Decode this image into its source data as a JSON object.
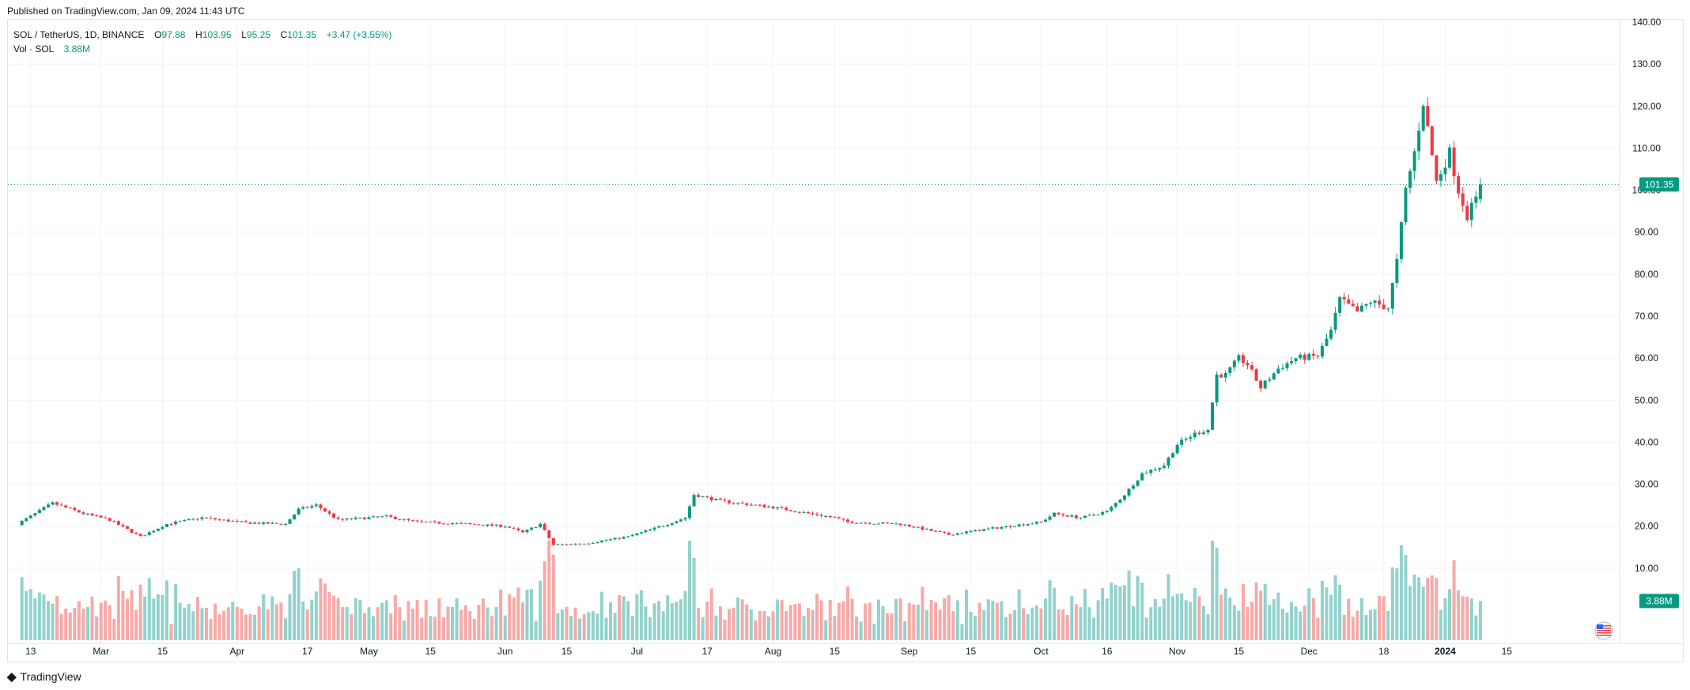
{
  "header": {
    "published": "Published on TradingView.com, Jan 09, 2024 11:43 UTC"
  },
  "legend": {
    "symbol": "SOL / TetherUS, 1D, BINANCE",
    "open_label": "O",
    "open": "97.88",
    "high_label": "H",
    "high": "103.95",
    "low_label": "L",
    "low": "95.25",
    "close_label": "C",
    "close": "101.35",
    "change": "+3.47 (+3.55%)",
    "volume_label": "Vol · SOL",
    "volume": "3.88M"
  },
  "footer": {
    "brand": "TradingView"
  },
  "colors": {
    "up": "#089981",
    "down": "#f23645",
    "up_volume": "#92d2cc",
    "down_volume": "#f7a9a7",
    "grid": "#f0f3fa",
    "last_price": "#089981"
  },
  "chart_data": {
    "type": "candlestick",
    "title": "SOL / TetherUS, 1D, BINANCE",
    "interval": "1D",
    "x_ticks": [
      "13",
      "Mar",
      "15",
      "Apr",
      "17",
      "May",
      "15",
      "Jun",
      "15",
      "Jul",
      "17",
      "Aug",
      "15",
      "Sep",
      "15",
      "Oct",
      "16",
      "Nov",
      "15",
      "Dec",
      "18",
      "2024",
      "15"
    ],
    "y_ticks": [
      "140.00",
      "130.00",
      "120.00",
      "110.00",
      "100.00",
      "90.00",
      "80.00",
      "70.00",
      "60.00",
      "50.00",
      "40.00",
      "30.00",
      "20.00",
      "10.00"
    ],
    "ylim": [
      0,
      140
    ],
    "last_price": "101.35",
    "last_volume": "3.88M",
    "grid": true,
    "close_anchors": [
      {
        "date": "2023-02-10",
        "close": 20.5
      },
      {
        "date": "2023-02-18",
        "close": 25.5
      },
      {
        "date": "2023-02-25",
        "close": 23.0
      },
      {
        "date": "2023-03-03",
        "close": 21.5
      },
      {
        "date": "2023-03-10",
        "close": 17.5
      },
      {
        "date": "2023-03-16",
        "close": 20.5
      },
      {
        "date": "2023-03-24",
        "close": 22.0
      },
      {
        "date": "2023-04-03",
        "close": 20.8
      },
      {
        "date": "2023-04-12",
        "close": 20.5
      },
      {
        "date": "2023-04-15",
        "close": 24.0
      },
      {
        "date": "2023-04-19",
        "close": 25.0
      },
      {
        "date": "2023-04-24",
        "close": 21.5
      },
      {
        "date": "2023-05-05",
        "close": 22.3
      },
      {
        "date": "2023-05-12",
        "close": 21.0
      },
      {
        "date": "2023-05-22",
        "close": 20.6
      },
      {
        "date": "2023-06-01",
        "close": 20.0
      },
      {
        "date": "2023-06-05",
        "close": 18.5
      },
      {
        "date": "2023-06-09",
        "close": 20.5
      },
      {
        "date": "2023-06-12",
        "close": 15.5
      },
      {
        "date": "2023-06-20",
        "close": 16.0
      },
      {
        "date": "2023-06-29",
        "close": 17.5
      },
      {
        "date": "2023-07-06",
        "close": 19.8
      },
      {
        "date": "2023-07-12",
        "close": 22.0
      },
      {
        "date": "2023-07-14",
        "close": 27.5
      },
      {
        "date": "2023-07-20",
        "close": 26.0
      },
      {
        "date": "2023-08-01",
        "close": 24.5
      },
      {
        "date": "2023-08-15",
        "close": 22.0
      },
      {
        "date": "2023-08-18",
        "close": 21.0
      },
      {
        "date": "2023-08-30",
        "close": 20.5
      },
      {
        "date": "2023-09-10",
        "close": 18.0
      },
      {
        "date": "2023-09-20",
        "close": 19.5
      },
      {
        "date": "2023-10-01",
        "close": 21.0
      },
      {
        "date": "2023-10-04",
        "close": 23.0
      },
      {
        "date": "2023-10-10",
        "close": 22.0
      },
      {
        "date": "2023-10-16",
        "close": 23.5
      },
      {
        "date": "2023-10-20",
        "close": 27.5
      },
      {
        "date": "2023-10-24",
        "close": 32.5
      },
      {
        "date": "2023-10-29",
        "close": 34.5
      },
      {
        "date": "2023-11-01",
        "close": 39.5
      },
      {
        "date": "2023-11-05",
        "close": 42.0
      },
      {
        "date": "2023-11-08",
        "close": 43.0
      },
      {
        "date": "2023-11-10",
        "close": 56.0
      },
      {
        "date": "2023-11-12",
        "close": 56.0
      },
      {
        "date": "2023-11-15",
        "close": 60.0
      },
      {
        "date": "2023-11-17",
        "close": 58.5
      },
      {
        "date": "2023-11-20",
        "close": 53.0
      },
      {
        "date": "2023-11-24",
        "close": 57.5
      },
      {
        "date": "2023-11-28",
        "close": 60.0
      },
      {
        "date": "2023-12-03",
        "close": 60.5
      },
      {
        "date": "2023-12-06",
        "close": 66.5
      },
      {
        "date": "2023-12-08",
        "close": 74.0
      },
      {
        "date": "2023-12-12",
        "close": 71.0
      },
      {
        "date": "2023-12-15",
        "close": 73.5
      },
      {
        "date": "2023-12-19",
        "close": 72.0
      },
      {
        "date": "2023-12-21",
        "close": 83.0
      },
      {
        "date": "2023-12-23",
        "close": 100.0
      },
      {
        "date": "2023-12-25",
        "close": 109.0
      },
      {
        "date": "2023-12-27",
        "close": 121.0
      },
      {
        "date": "2023-12-30",
        "close": 102.0
      },
      {
        "date": "2024-01-02",
        "close": 109.0
      },
      {
        "date": "2024-01-04",
        "close": 100.0
      },
      {
        "date": "2024-01-06",
        "close": 94.0
      },
      {
        "date": "2024-01-08",
        "close": 97.88
      },
      {
        "date": "2024-01-09",
        "close": 101.35
      }
    ],
    "volume_ylim_millions": [
      0,
      12.5
    ]
  }
}
